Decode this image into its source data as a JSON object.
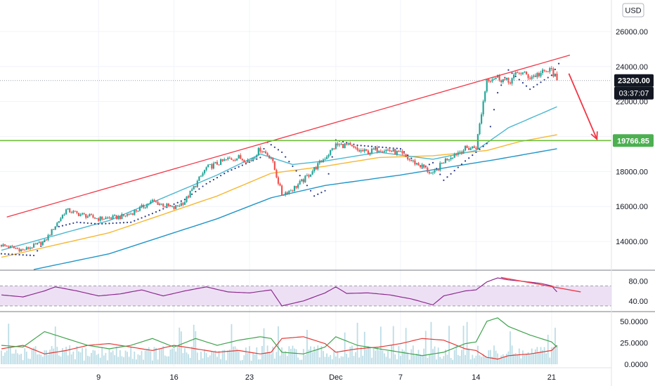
{
  "currency_button": "USD",
  "colors": {
    "up": "#26a69a",
    "down": "#ef5350",
    "trend": "#f23645",
    "support": "#6fbf3a",
    "ma_fast": "#4bb8d1",
    "ma_mid": "#f7b731",
    "ma_slow": "#2196c9",
    "sar": "#2a3a8a",
    "rsi": "#8e2a8e",
    "rsi_band": "#ede0f5",
    "adx_plus": "#3fa34d",
    "adx_minus": "#e53935",
    "price_label_bg": "#131722",
    "support_label_bg": "#4caf50"
  },
  "chart_data": {
    "type": "candlestick",
    "price_axis": {
      "ticks": [
        "26000.00",
        "24000.00",
        "22000.00",
        "18000.00",
        "16000.00",
        "14000.00"
      ],
      "tick_values": [
        26000,
        24000,
        22000,
        18000,
        16000,
        14000
      ],
      "range": [
        12400,
        27800
      ]
    },
    "x_axis": {
      "labels": [
        "9",
        "16",
        "23",
        "Dec",
        "7",
        "14",
        "21"
      ],
      "label_days": [
        9,
        16,
        23,
        31,
        37,
        44,
        51
      ]
    },
    "last_price": "23200.00",
    "last_price_value": 23200,
    "countdown": "03:37:07",
    "support_level": "19766.85",
    "support_value": 19766.85,
    "trendline": {
      "from": [
        0.5,
        15400
      ],
      "to": [
        52.7,
        24650
      ]
    },
    "projection_arrow": {
      "from": [
        52.6,
        23600
      ],
      "to": [
        55.2,
        19850
      ]
    },
    "close_anchors": [
      [
        0,
        13800
      ],
      [
        2,
        13500
      ],
      [
        4,
        14000
      ],
      [
        6,
        15800
      ],
      [
        7,
        15600
      ],
      [
        9,
        15300
      ],
      [
        11,
        15400
      ],
      [
        12,
        15600
      ],
      [
        14,
        16300
      ],
      [
        16,
        15900
      ],
      [
        17,
        16300
      ],
      [
        19,
        18200
      ],
      [
        21,
        18700
      ],
      [
        22,
        18800
      ],
      [
        23,
        18600
      ],
      [
        24,
        19300
      ],
      [
        25,
        18800
      ],
      [
        26,
        16700
      ],
      [
        27,
        17000
      ],
      [
        28,
        17500
      ],
      [
        30,
        18800
      ],
      [
        31,
        19500
      ],
      [
        32,
        19500
      ],
      [
        33,
        19200
      ],
      [
        34,
        19100
      ],
      [
        35,
        19300
      ],
      [
        36,
        19200
      ],
      [
        37,
        19000
      ],
      [
        38,
        18600
      ],
      [
        39,
        18300
      ],
      [
        40,
        17800
      ],
      [
        41,
        18600
      ],
      [
        42,
        19000
      ],
      [
        43,
        19300
      ],
      [
        44,
        19400
      ],
      [
        45,
        23300
      ],
      [
        46,
        23400
      ],
      [
        47,
        23100
      ],
      [
        48,
        23700
      ],
      [
        49,
        23400
      ],
      [
        50,
        23600
      ],
      [
        51,
        23800
      ],
      [
        51.5,
        23200
      ]
    ],
    "ma_fast": [
      [
        0,
        13500
      ],
      [
        10,
        15200
      ],
      [
        20,
        17800
      ],
      [
        24,
        19000
      ],
      [
        27,
        18400
      ],
      [
        30,
        18600
      ],
      [
        35,
        19100
      ],
      [
        40,
        18700
      ],
      [
        44,
        19200
      ],
      [
        47,
        20500
      ],
      [
        51.5,
        21700
      ]
    ],
    "ma_mid": [
      [
        0,
        13100
      ],
      [
        10,
        14500
      ],
      [
        20,
        16600
      ],
      [
        25,
        17900
      ],
      [
        30,
        18300
      ],
      [
        35,
        18800
      ],
      [
        40,
        18900
      ],
      [
        45,
        19200
      ],
      [
        48,
        19700
      ],
      [
        51.5,
        20100
      ]
    ],
    "ma_slow": [
      [
        3,
        12400
      ],
      [
        10,
        13300
      ],
      [
        20,
        15300
      ],
      [
        25,
        16500
      ],
      [
        30,
        17200
      ],
      [
        37,
        17800
      ],
      [
        42,
        18300
      ],
      [
        46,
        18700
      ],
      [
        51.5,
        19300
      ]
    ],
    "sar": [
      [
        0,
        13300
      ],
      [
        3,
        13200
      ],
      [
        5,
        14800
      ],
      [
        7,
        15100
      ],
      [
        9,
        15000
      ],
      [
        12,
        15100
      ],
      [
        14,
        15600
      ],
      [
        17,
        16400
      ],
      [
        19,
        17300
      ],
      [
        21,
        18000
      ],
      [
        24,
        18800
      ],
      [
        24.6,
        19700
      ],
      [
        26,
        19100
      ],
      [
        28,
        17500
      ],
      [
        29,
        16600
      ],
      [
        30,
        16900
      ],
      [
        31,
        19800
      ],
      [
        33,
        19500
      ],
      [
        35,
        19400
      ],
      [
        37,
        19300
      ],
      [
        39,
        18200
      ],
      [
        40,
        18500
      ],
      [
        41,
        17500
      ],
      [
        43,
        18600
      ],
      [
        45,
        19600
      ],
      [
        46,
        22500
      ],
      [
        47,
        23800
      ],
      [
        49,
        22700
      ],
      [
        51,
        23500
      ],
      [
        51.8,
        24300
      ]
    ],
    "rsi": {
      "ticks": [
        "80.00",
        "40.00"
      ],
      "tick_values": [
        80,
        40
      ],
      "band": [
        70,
        30
      ],
      "range": [
        20,
        100
      ],
      "values": [
        [
          0,
          52
        ],
        [
          2,
          48
        ],
        [
          4,
          60
        ],
        [
          5,
          68
        ],
        [
          7,
          60
        ],
        [
          9,
          50
        ],
        [
          11,
          54
        ],
        [
          13,
          62
        ],
        [
          15,
          50
        ],
        [
          17,
          60
        ],
        [
          19,
          68
        ],
        [
          21,
          58
        ],
        [
          23,
          56
        ],
        [
          25,
          62
        ],
        [
          26,
          30
        ],
        [
          28,
          40
        ],
        [
          30,
          56
        ],
        [
          31,
          68
        ],
        [
          32,
          55
        ],
        [
          34,
          56
        ],
        [
          36,
          52
        ],
        [
          38,
          44
        ],
        [
          39,
          38
        ],
        [
          40,
          32
        ],
        [
          41,
          50
        ],
        [
          43,
          60
        ],
        [
          44,
          62
        ],
        [
          45,
          78
        ],
        [
          46,
          86
        ],
        [
          47,
          82
        ],
        [
          48,
          80
        ],
        [
          50,
          75
        ],
        [
          51,
          70
        ],
        [
          51.5,
          58
        ]
      ],
      "divergence_line": {
        "from": [
          46.3,
          87
        ],
        "to": [
          53.7,
          58
        ]
      }
    },
    "adx": {
      "ticks": [
        "50.0000",
        "25.0000",
        "0.0000"
      ],
      "tick_values": [
        50,
        25,
        0
      ],
      "range": [
        0,
        58
      ],
      "plus_di": [
        [
          0,
          22
        ],
        [
          2,
          20
        ],
        [
          4,
          38
        ],
        [
          6,
          30
        ],
        [
          8,
          22
        ],
        [
          10,
          18
        ],
        [
          12,
          22
        ],
        [
          14,
          30
        ],
        [
          16,
          20
        ],
        [
          18,
          30
        ],
        [
          20,
          22
        ],
        [
          22,
          28
        ],
        [
          24,
          32
        ],
        [
          25,
          30
        ],
        [
          26,
          14
        ],
        [
          28,
          12
        ],
        [
          30,
          20
        ],
        [
          31,
          32
        ],
        [
          33,
          22
        ],
        [
          35,
          18
        ],
        [
          37,
          14
        ],
        [
          39,
          10
        ],
        [
          41,
          14
        ],
        [
          43,
          24
        ],
        [
          44,
          26
        ],
        [
          45,
          50
        ],
        [
          46,
          54
        ],
        [
          47,
          44
        ],
        [
          49,
          34
        ],
        [
          51,
          26
        ],
        [
          51.5,
          20
        ]
      ],
      "minus_di": [
        [
          0,
          18
        ],
        [
          2,
          22
        ],
        [
          4,
          12
        ],
        [
          6,
          16
        ],
        [
          8,
          22
        ],
        [
          10,
          24
        ],
        [
          12,
          20
        ],
        [
          14,
          16
        ],
        [
          16,
          22
        ],
        [
          18,
          18
        ],
        [
          20,
          14
        ],
        [
          22,
          16
        ],
        [
          24,
          12
        ],
        [
          25,
          14
        ],
        [
          26,
          30
        ],
        [
          28,
          32
        ],
        [
          30,
          24
        ],
        [
          31,
          14
        ],
        [
          33,
          18
        ],
        [
          35,
          20
        ],
        [
          37,
          24
        ],
        [
          39,
          30
        ],
        [
          41,
          28
        ],
        [
          43,
          18
        ],
        [
          44,
          16
        ],
        [
          45,
          8
        ],
        [
          46,
          6
        ],
        [
          47,
          10
        ],
        [
          49,
          12
        ],
        [
          51,
          16
        ],
        [
          51.5,
          22
        ]
      ],
      "volume_color": "#bcdde6"
    }
  }
}
